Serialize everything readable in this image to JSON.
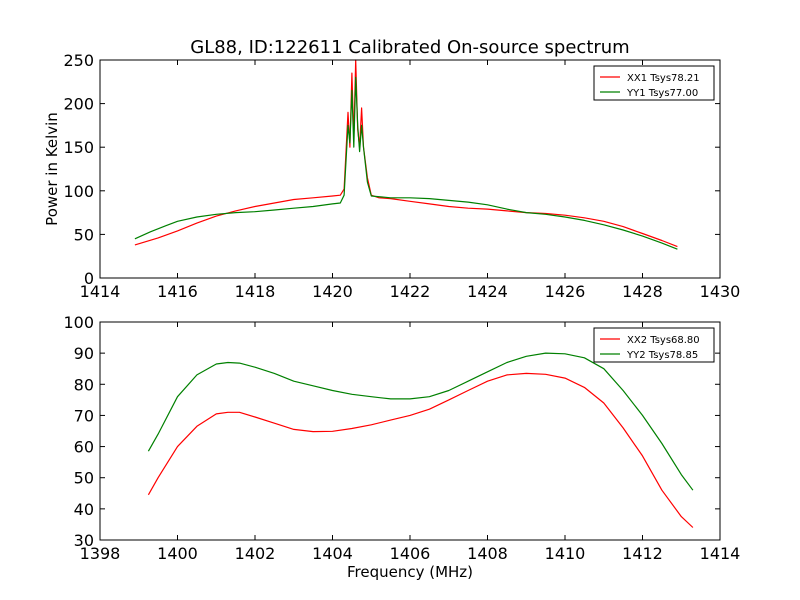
{
  "title": "GL88, ID:122611 Calibrated On-source spectrum",
  "chart_data": [
    {
      "type": "line",
      "title": "",
      "xlabel": "",
      "ylabel": "Power in Kelvin",
      "xlim": [
        1414,
        1430
      ],
      "ylim": [
        0,
        250
      ],
      "xticks": [
        1414,
        1416,
        1418,
        1420,
        1422,
        1424,
        1426,
        1428,
        1430
      ],
      "yticks": [
        0,
        50,
        100,
        150,
        200,
        250
      ],
      "grid": false,
      "legend_position": "top-right",
      "series": [
        {
          "name": "XX1 Tsys78.21",
          "color": "#ff0000",
          "points": [
            [
              1414.9,
              38
            ],
            [
              1415.5,
              46
            ],
            [
              1416.0,
              54
            ],
            [
              1416.5,
              63
            ],
            [
              1417.0,
              71
            ],
            [
              1417.5,
              77
            ],
            [
              1418.0,
              82
            ],
            [
              1418.5,
              86
            ],
            [
              1419.0,
              90
            ],
            [
              1419.5,
              92
            ],
            [
              1420.0,
              94
            ],
            [
              1420.2,
              95
            ],
            [
              1420.3,
              102
            ],
            [
              1420.4,
              190
            ],
            [
              1420.45,
              150
            ],
            [
              1420.5,
              235
            ],
            [
              1420.55,
              160
            ],
            [
              1420.6,
              250
            ],
            [
              1420.65,
              170
            ],
            [
              1420.7,
              150
            ],
            [
              1420.75,
              195
            ],
            [
              1420.8,
              150
            ],
            [
              1420.9,
              115
            ],
            [
              1421.0,
              95
            ],
            [
              1421.2,
              92
            ],
            [
              1421.5,
              91
            ],
            [
              1422.0,
              88
            ],
            [
              1422.5,
              85
            ],
            [
              1423.0,
              82
            ],
            [
              1423.5,
              80
            ],
            [
              1424.0,
              79
            ],
            [
              1424.5,
              77
            ],
            [
              1425.0,
              75
            ],
            [
              1425.5,
              74
            ],
            [
              1426.0,
              72
            ],
            [
              1426.5,
              69
            ],
            [
              1427.0,
              65
            ],
            [
              1427.5,
              59
            ],
            [
              1428.0,
              51
            ],
            [
              1428.5,
              43
            ],
            [
              1428.9,
              36
            ]
          ]
        },
        {
          "name": "YY1 Tsys77.00",
          "color": "#008000",
          "points": [
            [
              1414.9,
              45
            ],
            [
              1415.3,
              53
            ],
            [
              1415.7,
              60
            ],
            [
              1416.0,
              65
            ],
            [
              1416.5,
              70
            ],
            [
              1417.0,
              73
            ],
            [
              1417.5,
              75
            ],
            [
              1418.0,
              76
            ],
            [
              1418.5,
              78
            ],
            [
              1419.0,
              80
            ],
            [
              1419.5,
              82
            ],
            [
              1420.0,
              85
            ],
            [
              1420.2,
              86
            ],
            [
              1420.3,
              95
            ],
            [
              1420.4,
              175
            ],
            [
              1420.45,
              155
            ],
            [
              1420.5,
              215
            ],
            [
              1420.55,
              150
            ],
            [
              1420.6,
              230
            ],
            [
              1420.65,
              175
            ],
            [
              1420.7,
              145
            ],
            [
              1420.75,
              175
            ],
            [
              1420.8,
              150
            ],
            [
              1420.9,
              110
            ],
            [
              1421.0,
              94
            ],
            [
              1421.5,
              92
            ],
            [
              1422.0,
              92
            ],
            [
              1422.5,
              91
            ],
            [
              1423.0,
              89
            ],
            [
              1423.5,
              87
            ],
            [
              1424.0,
              84
            ],
            [
              1424.5,
              79
            ],
            [
              1425.0,
              75
            ],
            [
              1425.5,
              73
            ],
            [
              1426.0,
              70
            ],
            [
              1426.5,
              66
            ],
            [
              1427.0,
              61
            ],
            [
              1427.5,
              55
            ],
            [
              1428.0,
              48
            ],
            [
              1428.5,
              40
            ],
            [
              1428.9,
              33
            ]
          ]
        }
      ]
    },
    {
      "type": "line",
      "title": "",
      "xlabel": "Frequency (MHz)",
      "ylabel": "",
      "xlim": [
        1398,
        1414
      ],
      "ylim": [
        30,
        100
      ],
      "xticks": [
        1398,
        1400,
        1402,
        1404,
        1406,
        1408,
        1410,
        1412,
        1414
      ],
      "yticks": [
        30,
        40,
        50,
        60,
        70,
        80,
        90,
        100
      ],
      "grid": false,
      "legend_position": "top-right",
      "series": [
        {
          "name": "XX2 Tsys68.80",
          "color": "#ff0000",
          "points": [
            [
              1399.25,
              44.5
            ],
            [
              1399.5,
              50
            ],
            [
              1400.0,
              60
            ],
            [
              1400.5,
              66.5
            ],
            [
              1401.0,
              70.5
            ],
            [
              1401.3,
              71
            ],
            [
              1401.6,
              71
            ],
            [
              1402.0,
              69.5
            ],
            [
              1402.5,
              67.5
            ],
            [
              1403.0,
              65.5
            ],
            [
              1403.5,
              64.8
            ],
            [
              1404.0,
              64.9
            ],
            [
              1404.5,
              65.8
            ],
            [
              1405.0,
              67
            ],
            [
              1405.5,
              68.5
            ],
            [
              1406.0,
              70
            ],
            [
              1406.5,
              72
            ],
            [
              1407.0,
              75
            ],
            [
              1407.5,
              78
            ],
            [
              1408.0,
              81
            ],
            [
              1408.5,
              83
            ],
            [
              1409.0,
              83.5
            ],
            [
              1409.5,
              83.2
            ],
            [
              1410.0,
              82
            ],
            [
              1410.5,
              79
            ],
            [
              1411.0,
              74
            ],
            [
              1411.5,
              66
            ],
            [
              1412.0,
              57
            ],
            [
              1412.5,
              46
            ],
            [
              1413.0,
              37.5
            ],
            [
              1413.3,
              34
            ]
          ]
        },
        {
          "name": "YY2 Tsys78.85",
          "color": "#008000",
          "points": [
            [
              1399.25,
              58.5
            ],
            [
              1399.5,
              64
            ],
            [
              1400.0,
              76
            ],
            [
              1400.5,
              83
            ],
            [
              1401.0,
              86.5
            ],
            [
              1401.3,
              87
            ],
            [
              1401.6,
              86.8
            ],
            [
              1402.0,
              85.5
            ],
            [
              1402.5,
              83.5
            ],
            [
              1403.0,
              81
            ],
            [
              1403.5,
              79.5
            ],
            [
              1404.0,
              78
            ],
            [
              1404.5,
              76.8
            ],
            [
              1405.0,
              76
            ],
            [
              1405.5,
              75.3
            ],
            [
              1406.0,
              75.3
            ],
            [
              1406.5,
              76
            ],
            [
              1407.0,
              78
            ],
            [
              1407.5,
              81
            ],
            [
              1408.0,
              84
            ],
            [
              1408.5,
              87
            ],
            [
              1409.0,
              89
            ],
            [
              1409.5,
              90
            ],
            [
              1410.0,
              89.8
            ],
            [
              1410.5,
              88.5
            ],
            [
              1411.0,
              85
            ],
            [
              1411.5,
              78
            ],
            [
              1412.0,
              70
            ],
            [
              1412.5,
              61
            ],
            [
              1413.0,
              51
            ],
            [
              1413.3,
              46
            ]
          ]
        }
      ]
    }
  ]
}
